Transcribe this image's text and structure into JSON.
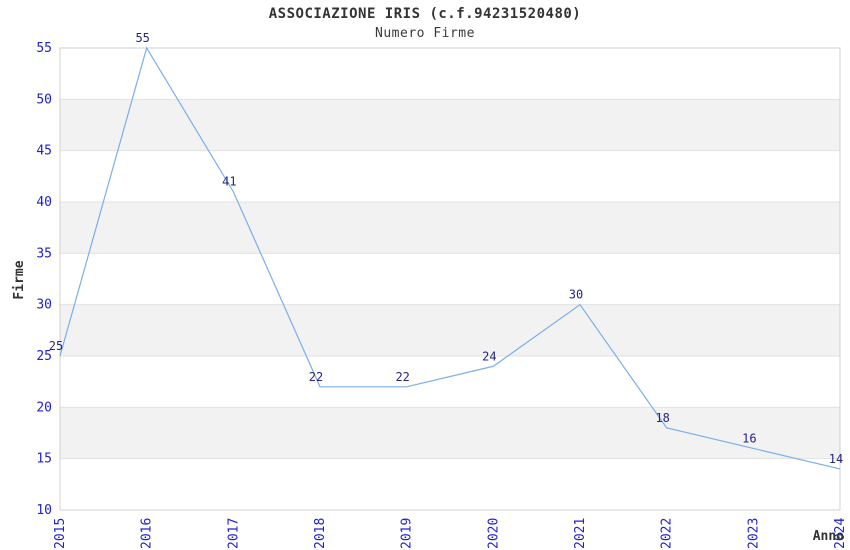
{
  "chart_data": {
    "type": "line",
    "title": "ASSOCIAZIONE IRIS (c.f.94231520480)",
    "subtitle": "Numero Firme",
    "xlabel": "Anno",
    "ylabel": "Firme",
    "x": [
      "2015",
      "2016",
      "2017",
      "2018",
      "2019",
      "2020",
      "2021",
      "2022",
      "2023",
      "2024"
    ],
    "values": [
      25,
      55,
      41,
      22,
      22,
      24,
      30,
      18,
      16,
      14
    ],
    "ylim": [
      10,
      55
    ],
    "ytick_step": 5,
    "yticks": [
      10,
      15,
      20,
      25,
      30,
      35,
      40,
      45,
      50,
      55
    ],
    "grid": "alternating-horizontal-bands",
    "legend": "none",
    "point_labels_shown": true,
    "colors": {
      "line": "#7aafe8",
      "tick_labels": "#2121cd",
      "point_labels": "#262680",
      "title_text": "#333333",
      "band": "#f2f2f2",
      "gridline": "#e2e2e2",
      "border": "#d0d0d0",
      "background": "#ffffff"
    }
  }
}
